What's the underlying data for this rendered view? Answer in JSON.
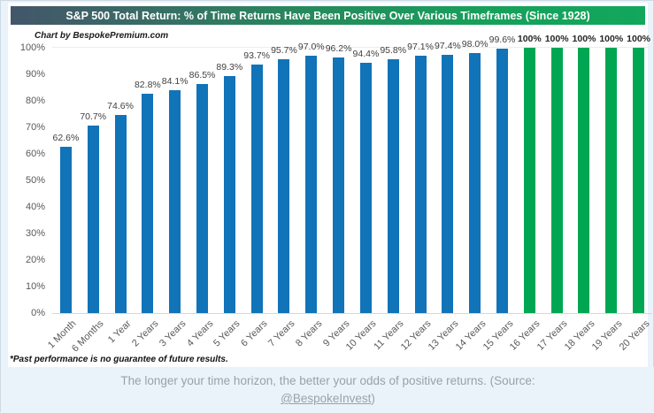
{
  "title": "S&P 500 Total Return: % of Time Returns Have Been Positive Over Various Timeframes (Since 1928)",
  "watermark": "Chart by BespokePremium.com",
  "footnote": "*Past performance is no guarantee of future results.",
  "caption": {
    "line1": "The longer your time horizon, the better your odds of positive returns. (Source:",
    "link": "@BespokeInvest",
    "after_link": ")"
  },
  "colors": {
    "blue_bar": "#1173B8",
    "green_bar": "#00A651",
    "title_gradient_left": "#43566A",
    "title_gradient_right": "#12A75C",
    "page_bg": "#EAF3FA",
    "axis_text": "#595959",
    "caption_text": "#98A2AB"
  },
  "chart_data": {
    "type": "bar",
    "title": "S&P 500 Total Return: % of Time Returns Have Been Positive Over Various Timeframes (Since 1928)",
    "categories": [
      "1 Month",
      "6 Months",
      "1 Year",
      "2 Years",
      "3 Years",
      "4 Years",
      "5 Years",
      "6 Years",
      "7 Years",
      "8 Years",
      "9 Years",
      "10 Years",
      "11 Years",
      "12 Years",
      "13 Years",
      "14 Years",
      "15 Years",
      "16 Years",
      "17 Years",
      "18 Years",
      "19 Years",
      "20 Years"
    ],
    "values": [
      62.6,
      70.7,
      74.6,
      82.8,
      84.1,
      86.5,
      89.3,
      93.7,
      95.7,
      97.0,
      96.2,
      94.4,
      95.8,
      97.1,
      97.4,
      98.0,
      99.6,
      100,
      100,
      100,
      100,
      100
    ],
    "labels": [
      "62.6%",
      "70.7%",
      "74.6%",
      "82.8%",
      "84.1%",
      "86.5%",
      "89.3%",
      "93.7%",
      "95.7%",
      "97.0%",
      "96.2%",
      "94.4%",
      "95.8%",
      "97.1%",
      "97.4%",
      "98.0%",
      "99.6%",
      "100%",
      "100%",
      "100%",
      "100%",
      "100%"
    ],
    "bar_colors": [
      "#1173B8",
      "#1173B8",
      "#1173B8",
      "#1173B8",
      "#1173B8",
      "#1173B8",
      "#1173B8",
      "#1173B8",
      "#1173B8",
      "#1173B8",
      "#1173B8",
      "#1173B8",
      "#1173B8",
      "#1173B8",
      "#1173B8",
      "#1173B8",
      "#1173B8",
      "#00A651",
      "#00A651",
      "#00A651",
      "#00A651",
      "#00A651"
    ],
    "y_ticks": [
      "0%",
      "10%",
      "20%",
      "30%",
      "40%",
      "50%",
      "60%",
      "70%",
      "80%",
      "90%",
      "100%"
    ],
    "ylim": [
      0,
      100
    ],
    "grid": false,
    "xlabel": "",
    "ylabel": ""
  }
}
